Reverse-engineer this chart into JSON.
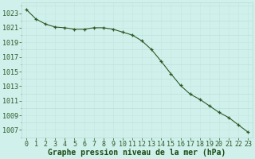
{
  "x": [
    0,
    1,
    2,
    3,
    4,
    5,
    6,
    7,
    8,
    9,
    10,
    11,
    12,
    13,
    14,
    15,
    16,
    17,
    18,
    19,
    20,
    21,
    22,
    23
  ],
  "y": [
    1023.5,
    1022.2,
    1021.5,
    1021.1,
    1021.0,
    1020.8,
    1020.8,
    1021.0,
    1021.0,
    1020.8,
    1020.4,
    1020.0,
    1019.2,
    1018.0,
    1016.4,
    1014.7,
    1013.1,
    1011.9,
    1011.2,
    1010.3,
    1009.4,
    1008.7,
    1007.7,
    1006.7
  ],
  "line_color": "#2d5a27",
  "marker": "+",
  "marker_color": "#2d5a27",
  "bg_color": "#cff0eb",
  "grid_minor_color": "#b8ddd8",
  "grid_major_color": "#c8e8e3",
  "ylabel_vals": [
    1007,
    1009,
    1011,
    1013,
    1015,
    1017,
    1019,
    1021,
    1023
  ],
  "ylim": [
    1006.0,
    1024.5
  ],
  "xlim": [
    -0.5,
    23.5
  ],
  "xlabel": "Graphe pression niveau de la mer (hPa)",
  "xlabel_color": "#1a4a14",
  "tick_color": "#2d5a27",
  "axis_label_fontsize": 7,
  "tick_fontsize": 6
}
